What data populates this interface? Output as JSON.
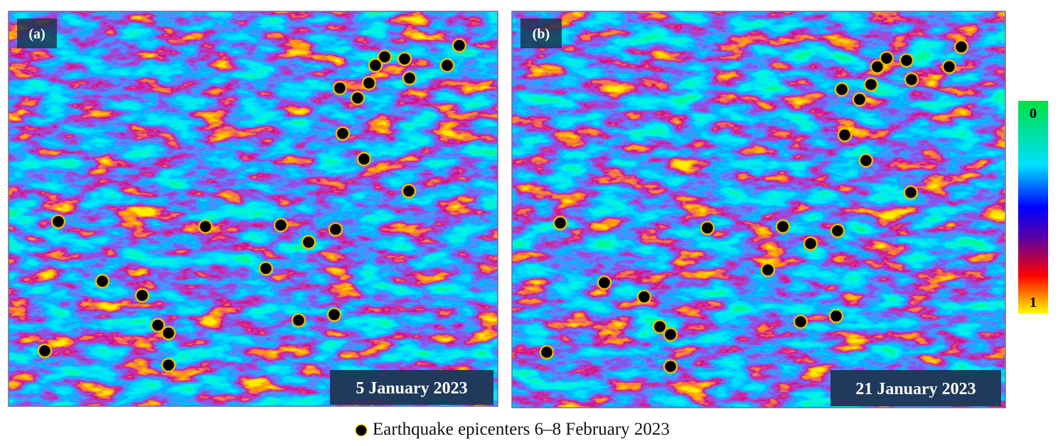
{
  "panels": [
    {
      "label": "(a)",
      "date": "5 January 2023"
    },
    {
      "label": "(b)",
      "date": "21 January 2023"
    }
  ],
  "colorbar": {
    "top_label": "0",
    "bottom_label": "1"
  },
  "legend": {
    "text": "Earthquake epicenters 6–8 February 2023"
  }
}
